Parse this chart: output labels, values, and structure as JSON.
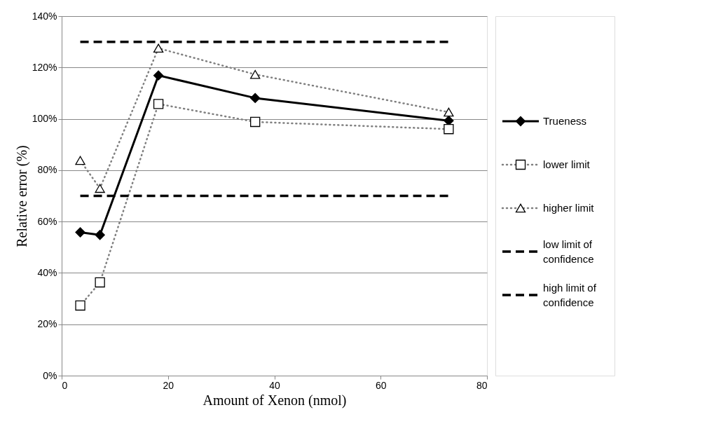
{
  "chart_data": {
    "type": "line",
    "xlabel": "Amount of Xenon (nmol)",
    "ylabel": "Relative error (%)",
    "xlim": [
      0,
      80
    ],
    "xticks": [
      0,
      20,
      40,
      60,
      80
    ],
    "ylim": [
      0,
      140
    ],
    "yticks": [
      {
        "value": 0,
        "label": "0%"
      },
      {
        "value": 20,
        "label": "20%"
      },
      {
        "value": 40,
        "label": "40%"
      },
      {
        "value": 60,
        "label": "60%"
      },
      {
        "value": 80,
        "label": "80%"
      },
      {
        "value": 100,
        "label": "100%"
      },
      {
        "value": 120,
        "label": "120%"
      },
      {
        "value": 140,
        "label": "140%"
      }
    ],
    "grid": "y",
    "legend": "right",
    "series": [
      {
        "name": "Trueness",
        "color": "#000000",
        "marker": "diamond",
        "line_style": "solid",
        "x": [
          3.5,
          7.2,
          18.2,
          36.4,
          72.8
        ],
        "values": [
          55.8,
          54.8,
          116.9,
          108.1,
          99.3
        ]
      },
      {
        "name": "lower limit",
        "color": "#808080",
        "marker": "square",
        "line_style": "dotted",
        "x": [
          3.5,
          7.2,
          18.2,
          36.4,
          72.8
        ],
        "values": [
          27.3,
          36.3,
          105.8,
          98.8,
          96
        ]
      },
      {
        "name": "higher limit",
        "color": "#808080",
        "marker": "triangle",
        "line_style": "dotted",
        "x": [
          3.5,
          7.2,
          18.2,
          36.4,
          72.8
        ],
        "values": [
          83.8,
          72.9,
          127.5,
          117.3,
          102.6
        ]
      },
      {
        "name": "low limit of confidence",
        "color": "#000000",
        "marker": "none",
        "line_style": "dashed",
        "x": [
          3.5,
          72.8
        ],
        "values": [
          70,
          70
        ]
      },
      {
        "name": "high limit of confidence",
        "color": "#000000",
        "marker": "none",
        "line_style": "dashed",
        "x": [
          3.5,
          72.8
        ],
        "values": [
          130,
          130
        ]
      }
    ]
  }
}
